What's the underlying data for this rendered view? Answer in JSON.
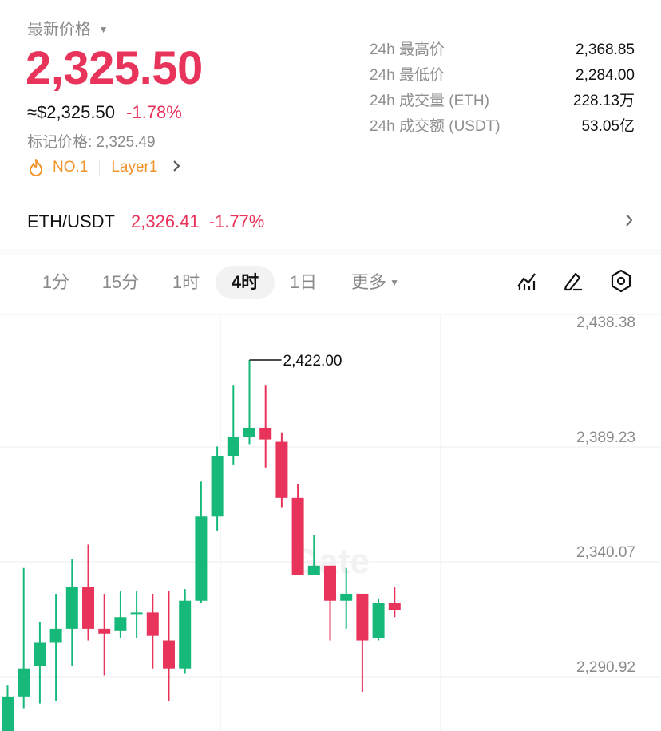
{
  "header": {
    "latest_price_label": "最新价格",
    "price": "2,325.50",
    "usd_price": "≈$2,325.50",
    "change_pct": "-1.78%",
    "mark_price": "标记价格: 2,325.49",
    "rank_tag": "NO.1",
    "category_tag": "Layer1"
  },
  "stats": [
    {
      "label": "24h 最高价",
      "value": "2,368.85"
    },
    {
      "label": "24h 最低价",
      "value": "2,284.00"
    },
    {
      "label": "24h 成交量 (ETH)",
      "value": "228.13万"
    },
    {
      "label": "24h 成交额 (USDT)",
      "value": "53.05亿"
    }
  ],
  "pair": {
    "name": "ETH/USDT",
    "price": "2,326.41",
    "change": "-1.77%"
  },
  "tabs": [
    "1分",
    "15分",
    "1时",
    "4时",
    "1日",
    "更多"
  ],
  "active_tab": "4时",
  "colors": {
    "up": "#16b979",
    "down": "#e8345a",
    "accent_orange": "#f0932b",
    "grid": "#eeeeee"
  },
  "icons": [
    "indicator-icon",
    "pencil-icon",
    "settings-hexagon-icon",
    "flame-icon",
    "chevron-right-icon"
  ],
  "chart_data": {
    "type": "candlestick",
    "y_ticks": [
      "2,438.38",
      "2,389.23",
      "2,340.07",
      "2,290.92"
    ],
    "y_tick_values": [
      2438.38,
      2389.23,
      2340.07,
      2290.92
    ],
    "high_marker": "2,422.00",
    "candles": [
      {
        "o": 2260,
        "c": 2278,
        "h": 2283,
        "l": 2255
      },
      {
        "o": 2278,
        "c": 2290,
        "h": 2333,
        "l": 2273
      },
      {
        "o": 2291,
        "c": 2301,
        "h": 2310,
        "l": 2275
      },
      {
        "o": 2301,
        "c": 2307,
        "h": 2322,
        "l": 2276
      },
      {
        "o": 2307,
        "c": 2325,
        "h": 2337,
        "l": 2291
      },
      {
        "o": 2325,
        "c": 2307,
        "h": 2343,
        "l": 2302
      },
      {
        "o": 2307,
        "c": 2305,
        "h": 2322,
        "l": 2287
      },
      {
        "o": 2306,
        "c": 2312,
        "h": 2323,
        "l": 2303
      },
      {
        "o": 2313,
        "c": 2314,
        "h": 2323,
        "l": 2303
      },
      {
        "o": 2314,
        "c": 2304,
        "h": 2322,
        "l": 2290
      },
      {
        "o": 2302,
        "c": 2290,
        "h": 2323,
        "l": 2276
      },
      {
        "o": 2290,
        "c": 2319,
        "h": 2324,
        "l": 2288
      },
      {
        "o": 2319,
        "c": 2355,
        "h": 2370,
        "l": 2318
      },
      {
        "o": 2355,
        "c": 2381,
        "h": 2385,
        "l": 2349
      },
      {
        "o": 2381,
        "c": 2389,
        "h": 2411,
        "l": 2377
      },
      {
        "o": 2389,
        "c": 2393,
        "h": 2422,
        "l": 2386
      },
      {
        "o": 2393,
        "c": 2388,
        "h": 2411,
        "l": 2376
      },
      {
        "o": 2387,
        "c": 2363,
        "h": 2391,
        "l": 2359
      },
      {
        "o": 2363,
        "c": 2330,
        "h": 2369,
        "l": 2330
      },
      {
        "o": 2330,
        "c": 2334,
        "h": 2347,
        "l": 2330
      },
      {
        "o": 2334,
        "c": 2319,
        "h": 2334,
        "l": 2302
      },
      {
        "o": 2319,
        "c": 2322,
        "h": 2333,
        "l": 2307
      },
      {
        "o": 2322,
        "c": 2302,
        "h": 2322,
        "l": 2280
      },
      {
        "o": 2303,
        "c": 2318,
        "h": 2320,
        "l": 2302
      },
      {
        "o": 2318,
        "c": 2315,
        "h": 2325,
        "l": 2312
      }
    ]
  }
}
